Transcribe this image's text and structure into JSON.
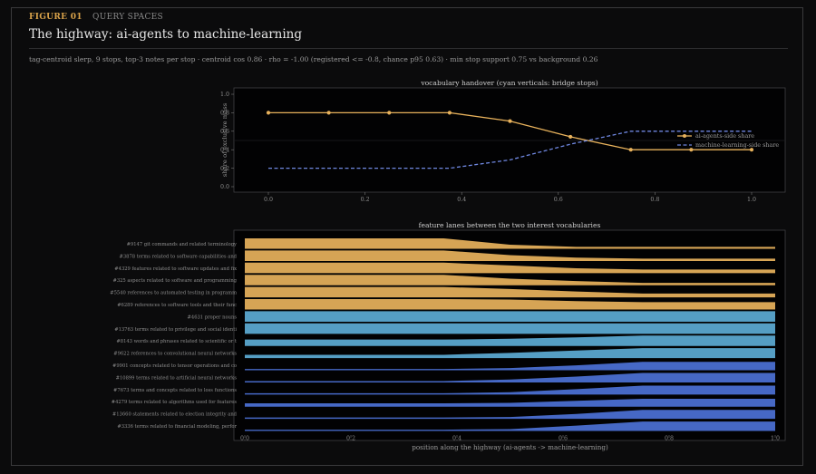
{
  "header": {
    "figure_number": "FIGURE 01",
    "category": "QUERY SPACES",
    "title": "The highway: ai-agents to machine-learning",
    "subtitle": "tag-centroid slerp, 9 stops, top-3 notes per stop  ·  centroid cos 0.86  ·  rho = -1.00 (registered <= -0.8, chance p95 0.63)  ·  min stop support 0.75 vs background 0.26"
  },
  "colors": {
    "ai_agents": "#e8b25c",
    "machine_learning": "#6f87e0",
    "lane_cyan": "#5aa7cf",
    "lane_blue": "#4a6ed0",
    "bridge": "#2fb7d2"
  },
  "chart_data": [
    {
      "type": "line",
      "title": "vocabulary handover (cyan verticals: bridge stops)",
      "xlabel": "",
      "ylabel": "share of exclusive mass",
      "xlim": [
        0,
        1
      ],
      "ylim": [
        0,
        1
      ],
      "x_ticks": [
        "0.0",
        "0.2",
        "0.4",
        "0.6",
        "0.8",
        "1.0"
      ],
      "y_ticks": [
        "0.0",
        "0.2",
        "0.4",
        "0.6",
        "0.8",
        "1.0"
      ],
      "x": [
        0.0,
        0.125,
        0.25,
        0.375,
        0.5,
        0.625,
        0.75,
        0.875,
        1.0
      ],
      "series": [
        {
          "name": "ai-agents-side share",
          "style": "solid-marker",
          "values": [
            0.8,
            0.8,
            0.8,
            0.8,
            0.71,
            0.54,
            0.4,
            0.4,
            0.4
          ]
        },
        {
          "name": "machine-learning-side share",
          "style": "dashed",
          "values": [
            0.2,
            0.2,
            0.2,
            0.2,
            0.29,
            0.46,
            0.6,
            0.6,
            0.6
          ]
        }
      ],
      "legend": "right",
      "grid": false
    },
    {
      "type": "area",
      "title": "feature lanes between the two interest vocabularies",
      "xlabel": "position along the highway (ai-agents -> machine-learning)",
      "ylabel": "",
      "xlim": [
        0,
        1
      ],
      "x_ticks": [
        "0.0",
        "0.2",
        "0.4",
        "0.6",
        "0.8",
        "1.0"
      ],
      "x": [
        0.0,
        0.125,
        0.25,
        0.375,
        0.5,
        0.625,
        0.75,
        0.875,
        1.0
      ],
      "lanes": [
        {
          "label": "#9147 git commands and related terminology",
          "group": "ai",
          "values": [
            1.0,
            1.0,
            1.0,
            1.0,
            0.38,
            0.16,
            0.16,
            0.16,
            0.16
          ]
        },
        {
          "label": "#3878 terms related to software capabilities and",
          "group": "ai",
          "values": [
            1.0,
            1.0,
            1.0,
            1.0,
            0.55,
            0.3,
            0.2,
            0.2,
            0.2
          ]
        },
        {
          "label": "#4329 features related to software updates and fix",
          "group": "ai",
          "values": [
            1.0,
            1.0,
            1.0,
            1.0,
            0.72,
            0.45,
            0.32,
            0.32,
            0.32
          ]
        },
        {
          "label": "#325  aspects related to software and programming",
          "group": "ai",
          "values": [
            1.0,
            1.0,
            1.0,
            1.0,
            0.62,
            0.38,
            0.2,
            0.2,
            0.2
          ]
        },
        {
          "label": "#5540  references to automated testing in programm",
          "group": "ai",
          "values": [
            1.0,
            1.0,
            1.0,
            1.0,
            0.8,
            0.55,
            0.35,
            0.35,
            0.35
          ]
        },
        {
          "label": "#6289  references to software tools and their func",
          "group": "ai",
          "values": [
            1.0,
            1.0,
            1.0,
            1.0,
            0.95,
            0.8,
            0.7,
            0.7,
            0.7
          ]
        },
        {
          "label": "#4631 proper nouns",
          "group": "mid",
          "values": [
            1.0,
            1.0,
            1.0,
            1.0,
            1.0,
            1.0,
            1.0,
            1.0,
            1.0
          ]
        },
        {
          "label": "#13763 terms related to privilege and social identi",
          "group": "mid",
          "values": [
            1.0,
            1.0,
            1.0,
            1.0,
            1.0,
            1.0,
            1.0,
            1.0,
            1.0
          ]
        },
        {
          "label": "#8143 words and phrases related to scientific or t",
          "group": "mid",
          "values": [
            0.6,
            0.6,
            0.6,
            0.6,
            0.68,
            0.82,
            1.0,
            1.0,
            1.0
          ]
        },
        {
          "label": "#9622 references to convolutional neural networks",
          "group": "mid",
          "values": [
            0.3,
            0.3,
            0.3,
            0.3,
            0.48,
            0.72,
            0.95,
            0.95,
            0.95
          ]
        },
        {
          "label": "#9901 concepts related to tensor operations and co",
          "group": "ml",
          "values": [
            0.1,
            0.1,
            0.1,
            0.1,
            0.18,
            0.45,
            0.8,
            0.8,
            0.8
          ]
        },
        {
          "label": "#10899 terms related to artificial neural networks",
          "group": "ml",
          "values": [
            0.1,
            0.1,
            0.1,
            0.1,
            0.25,
            0.55,
            0.9,
            0.9,
            0.9
          ]
        },
        {
          "label": "#7673 terms and concepts related to loss functions",
          "group": "ml",
          "values": [
            0.1,
            0.1,
            0.1,
            0.1,
            0.2,
            0.5,
            0.85,
            0.85,
            0.85
          ]
        },
        {
          "label": "#4279 terms related to algorithms used for features",
          "group": "ml",
          "values": [
            0.3,
            0.3,
            0.3,
            0.3,
            0.35,
            0.55,
            0.75,
            0.75,
            0.75
          ]
        },
        {
          "label": "#13660 statements related to election integrity and",
          "group": "ml",
          "values": [
            0.1,
            0.1,
            0.1,
            0.1,
            0.15,
            0.45,
            0.85,
            0.85,
            0.85
          ]
        },
        {
          "label": "#3336 terms related to financial modeling, perfor",
          "group": "ml",
          "values": [
            0.1,
            0.1,
            0.1,
            0.1,
            0.15,
            0.5,
            0.9,
            0.9,
            0.9
          ]
        }
      ]
    }
  ]
}
